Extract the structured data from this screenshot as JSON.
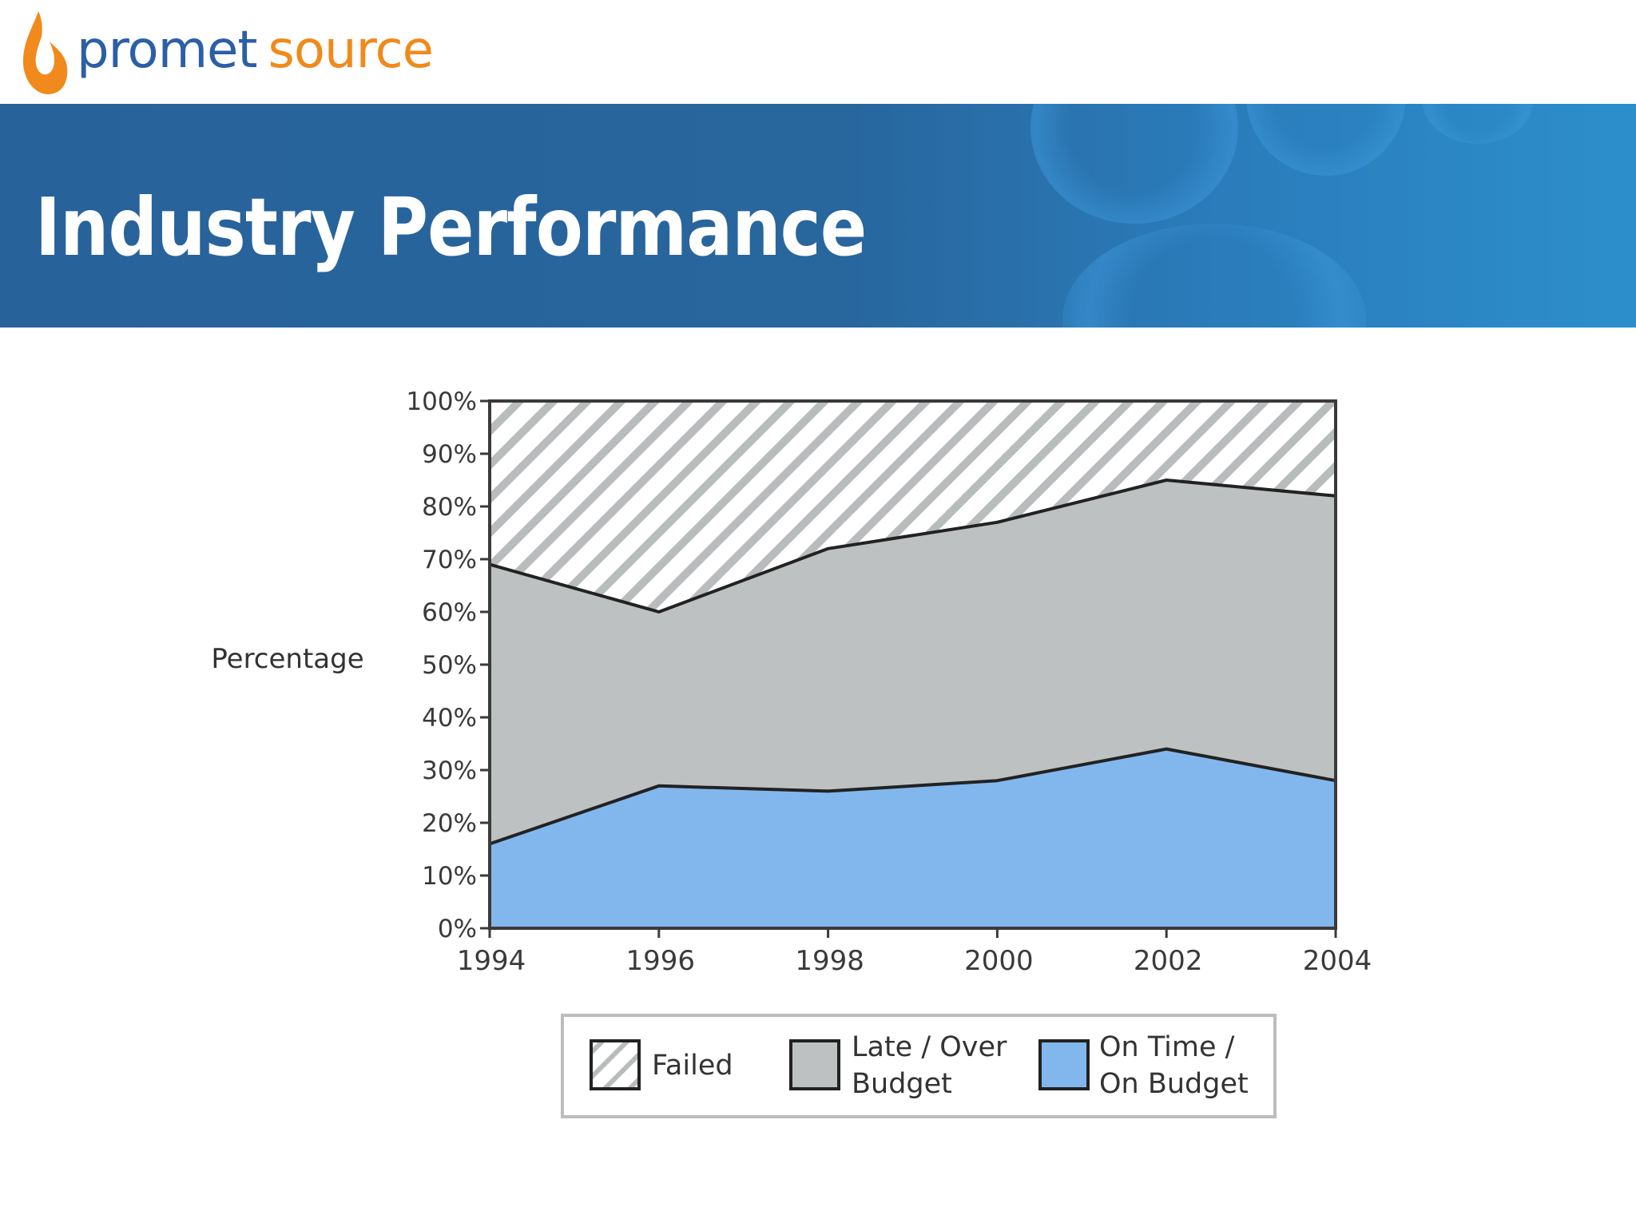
{
  "logo": {
    "word1": "promet",
    "word2": "source",
    "color_blue": "#2b5fa6",
    "color_orange": "#f08a1c",
    "icon": "flame-drop-icon"
  },
  "banner": {
    "title": "Industry Performance"
  },
  "chart_data": {
    "type": "area",
    "stacked": true,
    "normalized": true,
    "title": "",
    "xlabel": "",
    "ylabel": "Percentage",
    "x": [
      1994,
      1996,
      1998,
      2000,
      2002,
      2004
    ],
    "xticks": [
      "1994",
      "1996",
      "1998",
      "2000",
      "2002",
      "2004"
    ],
    "yticks": [
      "0%",
      "10%",
      "20%",
      "30%",
      "40%",
      "50%",
      "60%",
      "70%",
      "80%",
      "90%",
      "100%"
    ],
    "ylim": [
      0,
      100
    ],
    "series": [
      {
        "name": "On Time / On Budget",
        "values": [
          16,
          27,
          26,
          28,
          34,
          28
        ],
        "color": "#82b7ee",
        "pattern": "solid"
      },
      {
        "name": "Late / Over Budget",
        "values": [
          53,
          33,
          46,
          49,
          51,
          54
        ],
        "color": "#bec1c1",
        "pattern": "solid"
      },
      {
        "name": "Failed",
        "values": [
          31,
          40,
          28,
          23,
          15,
          18
        ],
        "color": "#ffffff",
        "pattern": "hatched"
      }
    ],
    "legend": {
      "position": "bottom",
      "entries": [
        {
          "label_line1": "Failed",
          "label_line2": ""
        },
        {
          "label_line1": "Late / Over",
          "label_line2": "Budget"
        },
        {
          "label_line1": "On Time /",
          "label_line2": "On Budget"
        }
      ]
    },
    "grid": false
  }
}
